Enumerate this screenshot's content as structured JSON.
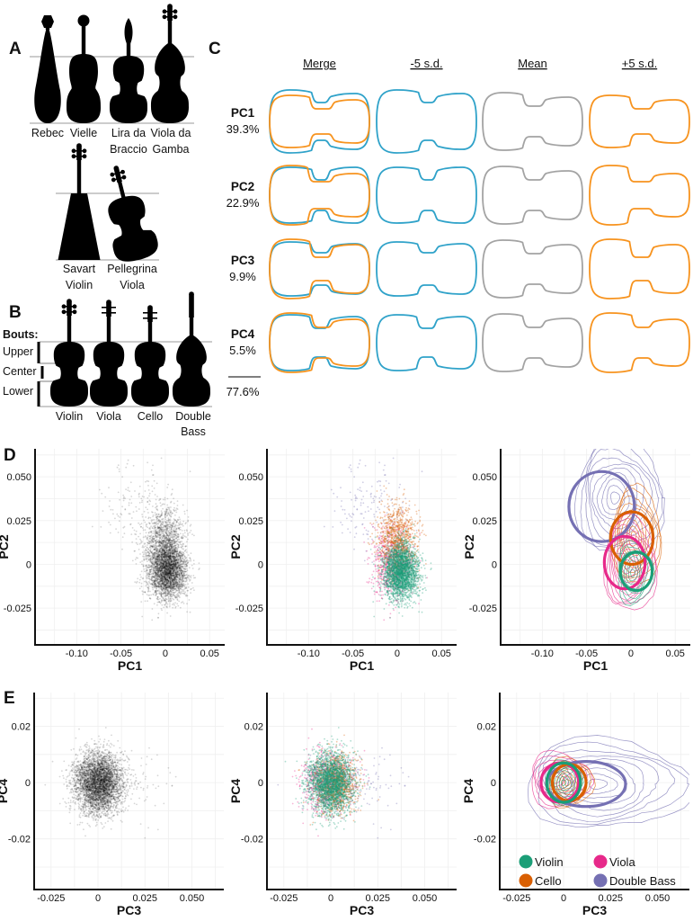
{
  "panel_labels": {
    "a": "A",
    "b": "B",
    "c": "C",
    "d": "D",
    "e": "E"
  },
  "panel_a": {
    "instruments": [
      {
        "lines": [
          "Rebec"
        ]
      },
      {
        "lines": [
          "Vielle"
        ]
      },
      {
        "lines": [
          "Lira da",
          "Braccio"
        ]
      },
      {
        "lines": [
          "Viola da",
          "Gamba"
        ]
      },
      {
        "lines": [
          "Savart",
          "Violin"
        ]
      },
      {
        "lines": [
          "Pellegrina",
          "Viola"
        ]
      }
    ]
  },
  "panel_b": {
    "bouts_title": "Bouts:",
    "bouts": [
      "Upper",
      "Center",
      "Lower"
    ],
    "instruments": [
      {
        "lines": [
          "Violin"
        ]
      },
      {
        "lines": [
          "Viola"
        ]
      },
      {
        "lines": [
          "Cello"
        ]
      },
      {
        "lines": [
          "Double",
          "Bass"
        ]
      }
    ]
  },
  "panel_c": {
    "columns": [
      "Merge",
      "-5 s.d.",
      "Mean",
      "+5 s.d."
    ],
    "rows": [
      {
        "pc": "PC1",
        "variance": "39.3%"
      },
      {
        "pc": "PC2",
        "variance": "22.9%"
      },
      {
        "pc": "PC3",
        "variance": "9.9%"
      },
      {
        "pc": "PC4",
        "variance": "5.5%"
      }
    ],
    "total": "77.6%",
    "colors": {
      "minus_sd": "#2fa2c9",
      "mean": "#a3a3a3",
      "plus_sd": "#f7931e"
    }
  },
  "chart_data": [
    {
      "type": "scatter",
      "panel": "D",
      "xlabel": "PC1",
      "ylabel": "PC2",
      "xlim": [
        -0.147,
        0.067
      ],
      "ylim": [
        -0.046,
        0.066
      ],
      "grid": true,
      "xticks": {
        "values": [
          -0.1,
          -0.05,
          0,
          0.05
        ],
        "labels": [
          "-0.10",
          "-0.05",
          "0",
          "0.05"
        ]
      },
      "yticks": {
        "values": [
          -0.025,
          0,
          0.025,
          0.05
        ],
        "labels": [
          "-0.025",
          "0",
          "0.025",
          "0.050"
        ]
      },
      "color_by_group": false,
      "point_color": "#000000",
      "groups": [
        {
          "name": "Viola",
          "center": [
            -0.007,
            0.001
          ],
          "sd": [
            0.012,
            0.01
          ],
          "n": 700
        },
        {
          "name": "Double Bass",
          "center": [
            -0.03,
            0.033
          ],
          "sd": [
            0.022,
            0.013
          ],
          "n": 150
        },
        {
          "name": "Cello",
          "center": [
            0.0,
            0.015
          ],
          "sd": [
            0.011,
            0.01
          ],
          "n": 900
        },
        {
          "name": "Violin",
          "center": [
            0.004,
            -0.004
          ],
          "sd": [
            0.01,
            0.008
          ],
          "n": 2500
        }
      ]
    },
    {
      "type": "scatter",
      "panel": "D",
      "xlabel": "PC1",
      "ylabel": "PC2",
      "xlim": [
        -0.147,
        0.067
      ],
      "ylim": [
        -0.046,
        0.066
      ],
      "grid": true,
      "xticks": {
        "values": [
          -0.1,
          -0.05,
          0,
          0.05
        ],
        "labels": [
          "-0.10",
          "-0.05",
          "0",
          "0.05"
        ]
      },
      "yticks": {
        "values": [
          -0.025,
          0,
          0.025,
          0.05
        ],
        "labels": [
          "-0.025",
          "0",
          "0.025",
          "0.050"
        ]
      },
      "color_by_group": true,
      "groups": [
        {
          "name": "Viola",
          "color": "#e7298a",
          "center": [
            -0.007,
            0.001
          ],
          "sd": [
            0.012,
            0.01
          ],
          "n": 700
        },
        {
          "name": "Double Bass",
          "color": "#7570b3",
          "center": [
            -0.03,
            0.033
          ],
          "sd": [
            0.022,
            0.013
          ],
          "n": 150
        },
        {
          "name": "Cello",
          "color": "#d95f02",
          "center": [
            0.0,
            0.015
          ],
          "sd": [
            0.011,
            0.01
          ],
          "n": 900
        },
        {
          "name": "Violin",
          "color": "#1b9e77",
          "center": [
            0.004,
            -0.004
          ],
          "sd": [
            0.01,
            0.008
          ],
          "n": 2500
        }
      ]
    },
    {
      "type": "contour",
      "panel": "D",
      "xlabel": "PC1",
      "ylabel": "PC2",
      "xlim": [
        -0.147,
        0.067
      ],
      "ylim": [
        -0.046,
        0.066
      ],
      "grid": true,
      "xticks": {
        "values": [
          -0.1,
          -0.05,
          0,
          0.05
        ],
        "labels": [
          "-0.10",
          "-0.05",
          "0",
          "0.05"
        ]
      },
      "yticks": {
        "values": [
          -0.025,
          0,
          0.025,
          0.05
        ],
        "labels": [
          "-0.025",
          "0",
          "0.025",
          "0.050"
        ]
      },
      "groups": [
        {
          "name": "Double Bass",
          "color": "#7570b3",
          "density_peak": [
            -0.018,
            0.038
          ],
          "density_extent": [
            0.05,
            0.034
          ],
          "levels": 10,
          "ellipse": {
            "center": [
              -0.033,
              0.033
            ],
            "radii": [
              0.037,
              0.02
            ]
          }
        },
        {
          "name": "Cello",
          "color": "#d95f02",
          "density_peak": [
            0.003,
            0.016
          ],
          "density_extent": [
            0.028,
            0.028
          ],
          "levels": 10,
          "ellipse": {
            "center": [
              0.001,
              0.015
            ],
            "radii": [
              0.024,
              0.015
            ]
          }
        },
        {
          "name": "Viola",
          "color": "#e7298a",
          "density_peak": [
            -0.004,
            0.0
          ],
          "density_extent": [
            0.03,
            0.027
          ],
          "levels": 10,
          "ellipse": {
            "center": [
              -0.007,
              0.001
            ],
            "radii": [
              0.023,
              0.015
            ]
          }
        },
        {
          "name": "Violin",
          "color": "#1b9e77",
          "density_peak": [
            0.002,
            -0.005
          ],
          "density_extent": [
            0.02,
            0.018
          ],
          "levels": 8,
          "ellipse": {
            "center": [
              0.006,
              -0.004
            ],
            "radii": [
              0.018,
              0.011
            ]
          }
        }
      ]
    },
    {
      "type": "scatter",
      "panel": "E",
      "xlabel": "PC3",
      "ylabel": "PC4",
      "xlim": [
        -0.034,
        0.067
      ],
      "ylim": [
        -0.038,
        0.032
      ],
      "grid": true,
      "xticks": {
        "values": [
          -0.025,
          0,
          0.025,
          0.05
        ],
        "labels": [
          "-0.025",
          "0",
          "0.025",
          "0.050"
        ]
      },
      "yticks": {
        "values": [
          -0.02,
          0,
          0.02
        ],
        "labels": [
          "-0.02",
          "0",
          "0.02"
        ]
      },
      "color_by_group": false,
      "point_color": "#000000",
      "groups": [
        {
          "name": "Viola",
          "center": [
            -0.002,
            0.0
          ],
          "sd": [
            0.007,
            0.0055
          ],
          "n": 700
        },
        {
          "name": "Double Bass",
          "center": [
            0.012,
            -0.0005
          ],
          "sd": [
            0.013,
            0.006
          ],
          "n": 150
        },
        {
          "name": "Cello",
          "center": [
            0.003,
            0.0
          ],
          "sd": [
            0.006,
            0.005
          ],
          "n": 900
        },
        {
          "name": "Violin",
          "center": [
            0.0,
            0.0
          ],
          "sd": [
            0.006,
            0.0055
          ],
          "n": 2500
        }
      ]
    },
    {
      "type": "scatter",
      "panel": "E",
      "xlabel": "PC3",
      "ylabel": "PC4",
      "xlim": [
        -0.034,
        0.067
      ],
      "ylim": [
        -0.038,
        0.032
      ],
      "grid": true,
      "xticks": {
        "values": [
          -0.025,
          0,
          0.025,
          0.05
        ],
        "labels": [
          "-0.025",
          "0",
          "0.025",
          "0.050"
        ]
      },
      "yticks": {
        "values": [
          -0.02,
          0,
          0.02
        ],
        "labels": [
          "-0.02",
          "0",
          "0.02"
        ]
      },
      "color_by_group": true,
      "groups": [
        {
          "name": "Viola",
          "color": "#e7298a",
          "center": [
            -0.002,
            0.0
          ],
          "sd": [
            0.007,
            0.0055
          ],
          "n": 700
        },
        {
          "name": "Double Bass",
          "color": "#7570b3",
          "center": [
            0.012,
            -0.0005
          ],
          "sd": [
            0.013,
            0.006
          ],
          "n": 150
        },
        {
          "name": "Cello",
          "color": "#d95f02",
          "center": [
            0.003,
            0.0
          ],
          "sd": [
            0.006,
            0.005
          ],
          "n": 900
        },
        {
          "name": "Violin",
          "color": "#1b9e77",
          "center": [
            0.0,
            0.0
          ],
          "sd": [
            0.006,
            0.0055
          ],
          "n": 2500
        }
      ]
    },
    {
      "type": "contour",
      "panel": "E",
      "xlabel": "PC3",
      "ylabel": "PC4",
      "xlim": [
        -0.034,
        0.067
      ],
      "ylim": [
        -0.038,
        0.032
      ],
      "grid": true,
      "xticks": {
        "values": [
          -0.025,
          0,
          0.025,
          0.05
        ],
        "labels": [
          "-0.025",
          "0",
          "0.025",
          "0.050"
        ]
      },
      "yticks": {
        "values": [
          -0.02,
          0,
          0.02
        ],
        "labels": [
          "-0.02",
          "0",
          "0.02"
        ]
      },
      "groups": [
        {
          "name": "Double Bass",
          "color": "#7570b3",
          "density_peak": [
            0.018,
            -0.0005
          ],
          "density_extent": [
            0.044,
            0.016
          ],
          "levels": 9,
          "ellipse": {
            "center": [
              0.012,
              -0.0005
            ],
            "radii": [
              0.021,
              0.008
            ]
          }
        },
        {
          "name": "Viola",
          "color": "#e7298a",
          "density_peak": [
            -0.004,
            0.001
          ],
          "density_extent": [
            0.016,
            0.01
          ],
          "levels": 8,
          "ellipse": {
            "center": [
              -0.002,
              0.0
            ],
            "radii": [
              0.01,
              0.007
            ]
          }
        },
        {
          "name": "Cello",
          "color": "#d95f02",
          "density_peak": [
            0.002,
            0.0
          ],
          "density_extent": [
            0.012,
            0.009
          ],
          "levels": 8,
          "ellipse": {
            "center": [
              0.003,
              0.0
            ],
            "radii": [
              0.009,
              0.0065
            ]
          }
        },
        {
          "name": "Violin",
          "color": "#1b9e77",
          "density_peak": [
            0.0,
            0.0
          ],
          "density_extent": [
            0.01,
            0.008
          ],
          "levels": 8,
          "ellipse": {
            "center": [
              0.0,
              0.0
            ],
            "radii": [
              0.009,
              0.007
            ]
          }
        }
      ],
      "legend": {
        "placement": "bottom",
        "entries": [
          {
            "label": "Violin",
            "color": "#1b9e77"
          },
          {
            "label": "Viola",
            "color": "#e7298a"
          },
          {
            "label": "Cello",
            "color": "#d95f02"
          },
          {
            "label": "Double Bass",
            "color": "#7570b3"
          }
        ]
      }
    }
  ]
}
